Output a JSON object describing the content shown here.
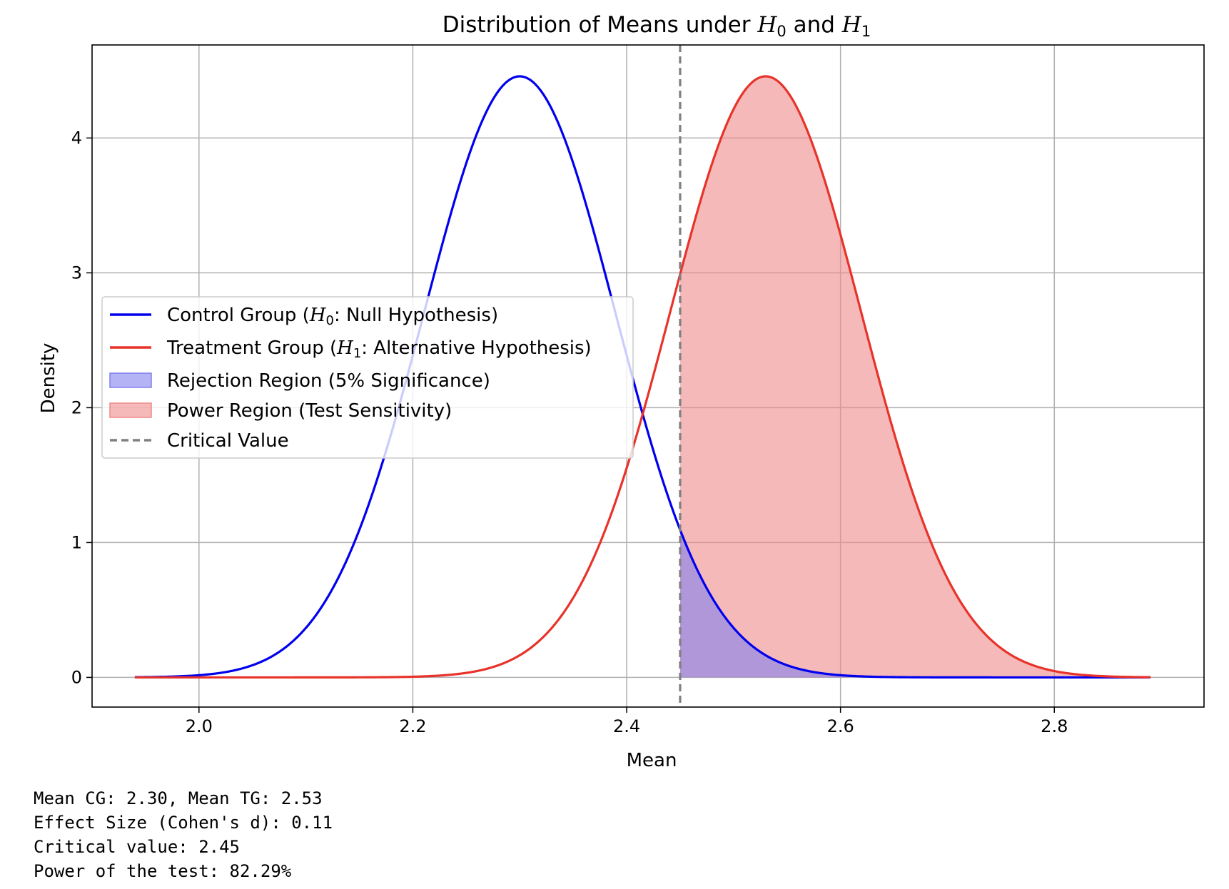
{
  "chart_data": {
    "type": "area",
    "title": {
      "before": "Distribution of Means under ",
      "v1": "H",
      "s1": "0",
      "middle": " and ",
      "v2": "H",
      "s2": "1"
    },
    "xlabel": "Mean",
    "ylabel": "Density",
    "xlim": [
      1.9,
      2.94
    ],
    "ylim": [
      -0.22,
      4.69
    ],
    "xticks": [
      2.0,
      2.2,
      2.4,
      2.6,
      2.8
    ],
    "xtick_labels": [
      "2.0",
      "2.2",
      "2.4",
      "2.6",
      "2.8"
    ],
    "yticks": [
      0,
      1,
      2,
      3,
      4
    ],
    "ytick_labels": [
      "0",
      "1",
      "2",
      "3",
      "4"
    ],
    "grid": true,
    "x_range": [
      1.94,
      2.89
    ],
    "critical_value": 2.45,
    "series": [
      {
        "name": "control",
        "mean": 2.3,
        "sd": 0.0895,
        "color": "#0000ee"
      },
      {
        "name": "treatment",
        "mean": 2.53,
        "sd": 0.0895,
        "color": "#e8332a"
      }
    ],
    "fills": {
      "rejection_color": "#8080ee",
      "power_color": "#ef8a8a",
      "critical_line_color": "#808080"
    },
    "legend": {
      "placement": "center-left",
      "items": [
        {
          "kind": "line",
          "color": "#0000ee",
          "pre": "Control Group (",
          "v": "H",
          "s": "0",
          "post": ": Null Hypothesis)"
        },
        {
          "kind": "line",
          "color": "#e8332a",
          "pre": "Treatment Group (",
          "v": "H",
          "s": "1",
          "post": ": Alternative Hypothesis)"
        },
        {
          "kind": "patch",
          "color": "#8080ee",
          "label": "Rejection Region (5% Significance)"
        },
        {
          "kind": "patch",
          "color": "#ef8a8a",
          "label": "Power Region (Test Sensitivity)"
        },
        {
          "kind": "dash",
          "color": "#808080",
          "label": "Critical Value"
        }
      ]
    }
  },
  "annotations": [
    "Mean CG: 2.30, Mean TG: 2.53",
    "Effect Size (Cohen's d): 0.11",
    "Critical value: 2.45",
    "Power of the test: 82.29%"
  ]
}
